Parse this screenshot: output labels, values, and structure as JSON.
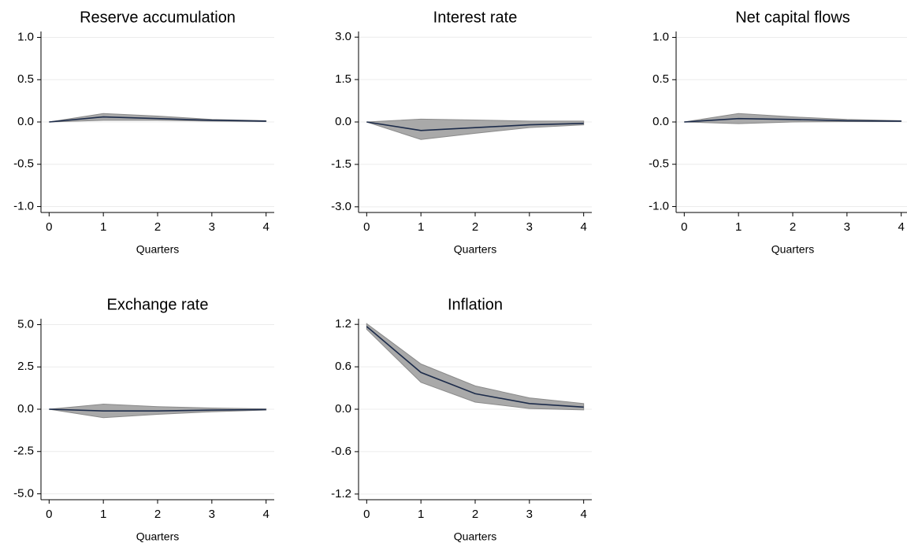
{
  "chart_data": [
    {
      "type": "line",
      "title": "Reserve accumulation",
      "x_label": "Quarters",
      "x": [
        0,
        1,
        2,
        3,
        4
      ],
      "values": [
        0,
        0.06,
        0.04,
        0.02,
        0.01
      ],
      "lower": [
        0,
        0.02,
        0.02,
        0.01,
        0.005
      ],
      "upper": [
        0,
        0.1,
        0.07,
        0.03,
        0.015
      ],
      "xlim": [
        -0.15,
        4.15
      ],
      "ylim": [
        -1.07,
        1.07
      ],
      "xticks": [
        0,
        1,
        2,
        3,
        4
      ],
      "yticks": [
        {
          "value": 1,
          "label": "1.0"
        },
        {
          "value": 0.5,
          "label": "0.5"
        },
        {
          "value": 0,
          "label": "0.0"
        },
        {
          "value": -0.5,
          "label": "-0.5"
        },
        {
          "value": -1,
          "label": "-1.0"
        }
      ],
      "color": "#1c2b4a",
      "band_color": "#a9a9a9",
      "grid": true
    },
    {
      "type": "line",
      "title": "Interest rate",
      "x_label": "Quarters",
      "x": [
        0,
        1,
        2,
        3,
        4
      ],
      "values": [
        0,
        -0.3,
        -0.2,
        -0.1,
        -0.05
      ],
      "lower": [
        0,
        -0.62,
        -0.4,
        -0.2,
        -0.1
      ],
      "upper": [
        0,
        0.1,
        0.07,
        0.03,
        0.03
      ],
      "xlim": [
        -0.15,
        4.15
      ],
      "ylim": [
        -3.2,
        3.2
      ],
      "xticks": [
        0,
        1,
        2,
        3,
        4
      ],
      "yticks": [
        {
          "value": 3,
          "label": "3.0"
        },
        {
          "value": 1.5,
          "label": "1.5"
        },
        {
          "value": 0,
          "label": "0.0"
        },
        {
          "value": -1.5,
          "label": "-1.5"
        },
        {
          "value": -3,
          "label": "-3.0"
        }
      ],
      "color": "#1c2b4a",
      "band_color": "#a9a9a9",
      "grid": true
    },
    {
      "type": "line",
      "title": "Net capital flows",
      "x_label": "Quarters",
      "x": [
        0,
        1,
        2,
        3,
        4
      ],
      "values": [
        0,
        0.04,
        0.03,
        0.015,
        0.01
      ],
      "lower": [
        0,
        -0.02,
        0,
        0.005,
        0.005
      ],
      "upper": [
        0,
        0.1,
        0.06,
        0.03,
        0.015
      ],
      "xlim": [
        -0.15,
        4.15
      ],
      "ylim": [
        -1.07,
        1.07
      ],
      "xticks": [
        0,
        1,
        2,
        3,
        4
      ],
      "yticks": [
        {
          "value": 1,
          "label": "1.0"
        },
        {
          "value": 0.5,
          "label": "0.5"
        },
        {
          "value": 0,
          "label": "0.0"
        },
        {
          "value": -0.5,
          "label": "-0.5"
        },
        {
          "value": -1,
          "label": "-1.0"
        }
      ],
      "color": "#1c2b4a",
      "band_color": "#a9a9a9",
      "grid": true
    },
    {
      "type": "line",
      "title": "Exchange rate",
      "x_label": "Quarters",
      "x": [
        0,
        1,
        2,
        3,
        4
      ],
      "values": [
        0,
        -0.1,
        -0.1,
        -0.05,
        -0.02
      ],
      "lower": [
        0,
        -0.5,
        -0.3,
        -0.15,
        -0.05
      ],
      "upper": [
        0,
        0.3,
        0.15,
        0.07,
        0.02
      ],
      "xlim": [
        -0.15,
        4.15
      ],
      "ylim": [
        -5.35,
        5.35
      ],
      "xticks": [
        0,
        1,
        2,
        3,
        4
      ],
      "yticks": [
        {
          "value": 5,
          "label": "5.0"
        },
        {
          "value": 2.5,
          "label": "2.5"
        },
        {
          "value": 0,
          "label": "0.0"
        },
        {
          "value": -2.5,
          "label": "-2.5"
        },
        {
          "value": -5,
          "label": "-5.0"
        }
      ],
      "color": "#1c2b4a",
      "band_color": "#a9a9a9",
      "grid": true
    },
    {
      "type": "line",
      "title": "Inflation",
      "x_label": "Quarters",
      "x": [
        0,
        1,
        2,
        3,
        4
      ],
      "values": [
        1.17,
        0.52,
        0.22,
        0.08,
        0.03
      ],
      "lower": [
        1.13,
        0.38,
        0.1,
        0.01,
        -0.01
      ],
      "upper": [
        1.21,
        0.64,
        0.33,
        0.16,
        0.08
      ],
      "xlim": [
        -0.15,
        4.15
      ],
      "ylim": [
        -1.28,
        1.28
      ],
      "xticks": [
        0,
        1,
        2,
        3,
        4
      ],
      "yticks": [
        {
          "value": 1.2,
          "label": "1.2"
        },
        {
          "value": 0.6,
          "label": "0.6"
        },
        {
          "value": 0,
          "label": "0.0"
        },
        {
          "value": -0.6,
          "label": "-0.6"
        },
        {
          "value": -1.2,
          "label": "-1.2"
        }
      ],
      "color": "#1c2b4a",
      "band_color": "#a9a9a9",
      "grid": true
    }
  ]
}
